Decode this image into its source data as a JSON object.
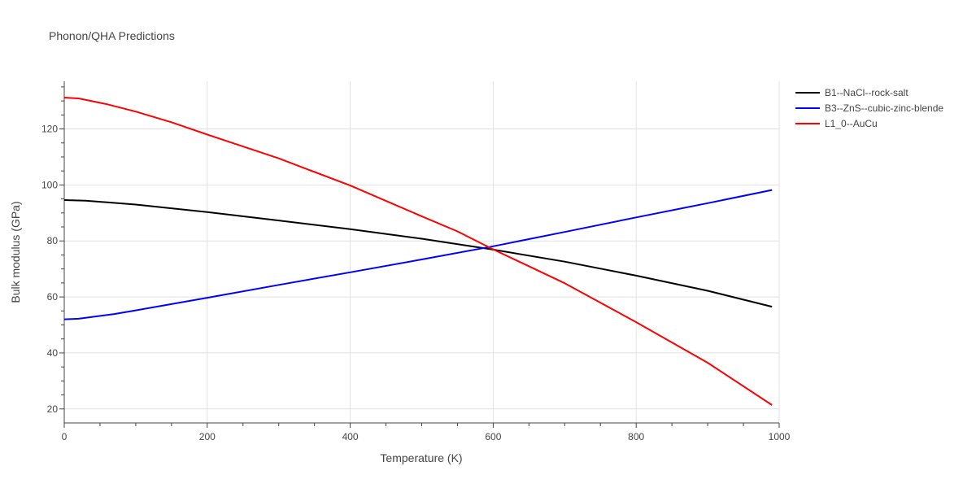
{
  "chart_data": {
    "type": "line",
    "title": "Phonon/QHA Predictions",
    "xlabel": "Temperature (K)",
    "ylabel": "Bulk modulus (GPa)",
    "xlim": [
      0,
      1000
    ],
    "ylim": [
      15,
      137
    ],
    "x_ticks": [
      0,
      200,
      400,
      600,
      800,
      1000
    ],
    "y_ticks": [
      20,
      40,
      60,
      80,
      100,
      120
    ],
    "grid": true,
    "legend_position": "top-right",
    "series": [
      {
        "name": "B1--NaCl--rock-salt",
        "color": "#000000",
        "x": [
          0,
          30,
          100,
          200,
          300,
          400,
          500,
          600,
          700,
          800,
          900,
          990
        ],
        "y": [
          94.6,
          94.4,
          93.0,
          90.3,
          87.3,
          84.2,
          80.8,
          76.9,
          72.6,
          67.6,
          62.2,
          56.5
        ]
      },
      {
        "name": "B3--ZnS--cubic-zinc-blende",
        "color": "#0000ff",
        "x": [
          0,
          20,
          70,
          100,
          200,
          300,
          400,
          500,
          600,
          700,
          800,
          900,
          990
        ],
        "y": [
          52.0,
          52.2,
          53.9,
          55.2,
          59.7,
          64.3,
          68.8,
          73.4,
          78.1,
          83.2,
          88.4,
          93.5,
          98.2
        ]
      },
      {
        "name": "L1_0--AuCu",
        "color": "#ff0000",
        "x": [
          0,
          20,
          60,
          100,
          150,
          200,
          300,
          400,
          500,
          550,
          600,
          700,
          800,
          900,
          990
        ],
        "y": [
          131.2,
          130.9,
          128.8,
          126.2,
          122.4,
          118.0,
          109.5,
          99.8,
          88.8,
          83.4,
          77.0,
          64.9,
          51.0,
          36.5,
          21.4
        ]
      }
    ]
  }
}
